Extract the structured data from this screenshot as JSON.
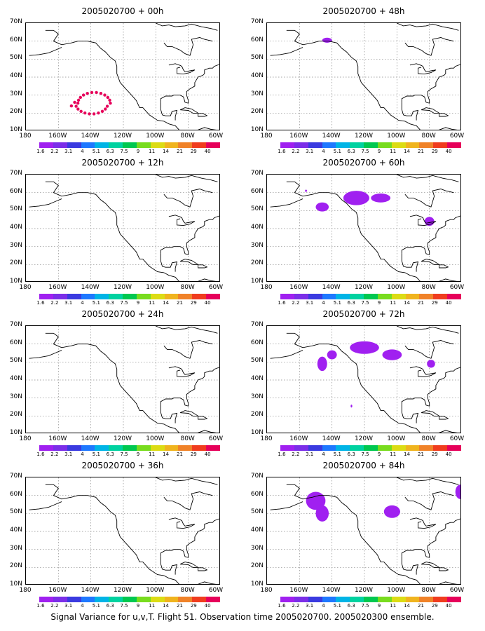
{
  "figure": {
    "caption": "Signal Variance for u,v,T. Flight 51. Observation time 2005020700. 2005020300 ensemble."
  },
  "axes": {
    "lat_labels": [
      "70N",
      "60N",
      "50N",
      "40N",
      "30N",
      "20N",
      "10N"
    ],
    "lon_labels": [
      "180",
      "160W",
      "140W",
      "120W",
      "100W",
      "80W",
      "60W"
    ]
  },
  "colorbar": {
    "labels": [
      "1.6",
      "2.2",
      "3.1",
      "4",
      "5.1",
      "6.3",
      "7.5",
      "9",
      "11",
      "14",
      "21",
      "29",
      "40"
    ],
    "colors": [
      "#a020f0",
      "#7b2ee8",
      "#3a3ae0",
      "#1e78ff",
      "#00b4e6",
      "#00d2a0",
      "#00c850",
      "#78dc1e",
      "#dcdc14",
      "#f0b41e",
      "#f08228",
      "#f03c1e",
      "#e6005a"
    ]
  },
  "panels": [
    {
      "id": "p00",
      "title": "2005020700 + 00h",
      "lead": "00h",
      "signal": "dots"
    },
    {
      "id": "p48",
      "title": "2005020700 + 48h",
      "lead": "48h",
      "signal": "blobs"
    },
    {
      "id": "p12",
      "title": "2005020700 + 12h",
      "lead": "12h",
      "signal": "none"
    },
    {
      "id": "p60",
      "title": "2005020700 + 60h",
      "lead": "60h",
      "signal": "blobs"
    },
    {
      "id": "p24",
      "title": "2005020700 + 24h",
      "lead": "24h",
      "signal": "none"
    },
    {
      "id": "p72",
      "title": "2005020700 + 72h",
      "lead": "72h",
      "signal": "blobs"
    },
    {
      "id": "p36",
      "title": "2005020700 + 36h",
      "lead": "36h",
      "signal": "none"
    },
    {
      "id": "p84",
      "title": "2005020700 + 84h",
      "lead": "84h",
      "signal": "blobs"
    }
  ]
}
